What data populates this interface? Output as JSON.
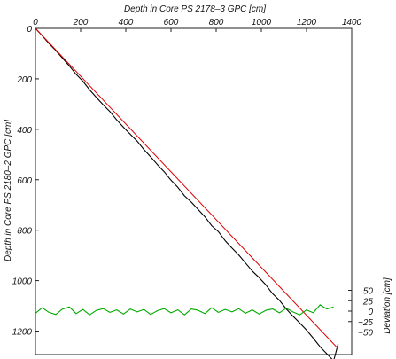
{
  "chart_data": {
    "type": "line",
    "xlabel": "Depth in Core PS 2178–3 GPC [cm]",
    "ylabel": "Depth in Core PS 2180–2 GPC [cm]",
    "y2label": "Deviation [cm]",
    "xlim": [
      0,
      1400
    ],
    "ylim": [
      0,
      1300
    ],
    "y2lim": [
      -65,
      65
    ],
    "xticks": [
      "0",
      "200",
      "400",
      "600",
      "800",
      "1000",
      "1200",
      "1400"
    ],
    "yticks": [
      "0",
      "200",
      "400",
      "600",
      "800",
      "1000",
      "1200"
    ],
    "y2ticks": [
      "50",
      "25",
      "0",
      "−25",
      "−50"
    ],
    "grid": false,
    "colors": {
      "correlation": "#000000",
      "fit": "#dd0000",
      "deviation": "#00aa00"
    },
    "series": [
      {
        "id": "correlation",
        "axis": "left",
        "x": [
          0,
          30,
          60,
          90,
          120,
          150,
          180,
          210,
          240,
          270,
          300,
          330,
          360,
          390,
          420,
          450,
          480,
          510,
          540,
          570,
          600,
          630,
          660,
          690,
          720,
          750,
          780,
          810,
          840,
          870,
          900,
          930,
          960,
          990,
          1020,
          1050,
          1080,
          1110,
          1140,
          1170,
          1200,
          1230,
          1260,
          1290,
          1320,
          1340
        ],
        "y": [
          0,
          29,
          60,
          88,
          118,
          149,
          182,
          209,
          244,
          274,
          303,
          330,
          363,
          392,
          420,
          447,
          480,
          509,
          540,
          568,
          602,
          630,
          664,
          689,
          718,
          747,
          782,
          806,
          842,
          871,
          898,
          930,
          962,
          988,
          1017,
          1052,
          1078,
          1112,
          1141,
          1168,
          1196,
          1228,
          1262,
          1290,
          1318,
          1250
        ]
      },
      {
        "id": "fit",
        "axis": "left",
        "x": [
          0,
          1340
        ],
        "y": [
          0,
          1270
        ]
      },
      {
        "id": "deviation",
        "axis": "right",
        "x": [
          0,
          30,
          60,
          90,
          120,
          150,
          180,
          210,
          240,
          270,
          300,
          330,
          360,
          390,
          420,
          450,
          480,
          510,
          540,
          570,
          600,
          630,
          660,
          690,
          720,
          750,
          780,
          810,
          840,
          870,
          900,
          930,
          960,
          990,
          1020,
          1050,
          1080,
          1110,
          1140,
          1170,
          1200,
          1230,
          1260,
          1290,
          1320
        ],
        "y": [
          -5,
          8,
          -3,
          -8,
          5,
          10,
          -6,
          4,
          -9,
          2,
          6,
          -3,
          3,
          -7,
          5,
          -2,
          4,
          -8,
          1,
          6,
          -4,
          3,
          -9,
          5,
          2,
          -6,
          8,
          -3,
          4,
          -2,
          6,
          -5,
          3,
          -7,
          2,
          5,
          -4,
          7,
          -2,
          -9,
          3,
          -4,
          15,
          5,
          10
        ]
      }
    ]
  }
}
